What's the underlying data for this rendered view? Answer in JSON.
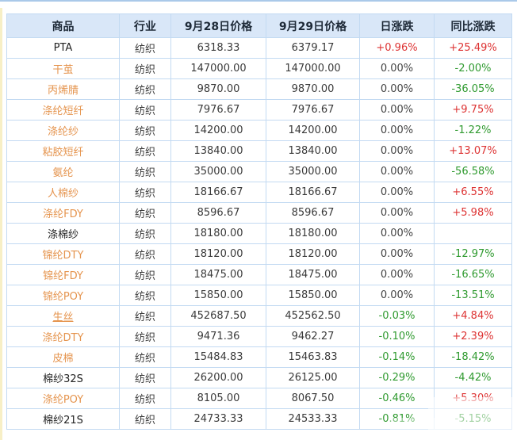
{
  "colors": {
    "up": "#dd3333",
    "down": "#2f9a2f",
    "flat": "#444444",
    "link": "#e5944e",
    "header_bg": "#d9e7f8",
    "border": "#c3daf2"
  },
  "table": {
    "headers": [
      "商品",
      "行业",
      "9月28日价格",
      "9月29日价格",
      "日涨跌",
      "同比涨跌"
    ],
    "rows": [
      {
        "name": "PTA",
        "link": false,
        "underline": false,
        "industry": "纺织",
        "price_0928": "6318.33",
        "price_0929": "6379.17",
        "daily_change": "+0.96%",
        "yoy_change": "+25.49%"
      },
      {
        "name": "干茧",
        "link": true,
        "underline": false,
        "industry": "纺织",
        "price_0928": "147000.00",
        "price_0929": "147000.00",
        "daily_change": "0.00%",
        "yoy_change": "-2.00%"
      },
      {
        "name": "丙烯腈",
        "link": true,
        "underline": false,
        "industry": "纺织",
        "price_0928": "9870.00",
        "price_0929": "9870.00",
        "daily_change": "0.00%",
        "yoy_change": "-36.05%"
      },
      {
        "name": "涤纶短纤",
        "link": true,
        "underline": false,
        "industry": "纺织",
        "price_0928": "7976.67",
        "price_0929": "7976.67",
        "daily_change": "0.00%",
        "yoy_change": "+9.75%"
      },
      {
        "name": "涤纶纱",
        "link": true,
        "underline": false,
        "industry": "纺织",
        "price_0928": "14200.00",
        "price_0929": "14200.00",
        "daily_change": "0.00%",
        "yoy_change": "-1.22%"
      },
      {
        "name": "粘胶短纤",
        "link": true,
        "underline": false,
        "industry": "纺织",
        "price_0928": "13840.00",
        "price_0929": "13840.00",
        "daily_change": "0.00%",
        "yoy_change": "+13.07%"
      },
      {
        "name": "氨纶",
        "link": true,
        "underline": false,
        "industry": "纺织",
        "price_0928": "35000.00",
        "price_0929": "35000.00",
        "daily_change": "0.00%",
        "yoy_change": "-56.58%"
      },
      {
        "name": "人棉纱",
        "link": true,
        "underline": false,
        "industry": "纺织",
        "price_0928": "18166.67",
        "price_0929": "18166.67",
        "daily_change": "0.00%",
        "yoy_change": "+6.55%"
      },
      {
        "name": "涤纶FDY",
        "link": true,
        "underline": false,
        "industry": "纺织",
        "price_0928": "8596.67",
        "price_0929": "8596.67",
        "daily_change": "0.00%",
        "yoy_change": "+5.98%"
      },
      {
        "name": "涤棉纱",
        "link": false,
        "underline": false,
        "industry": "纺织",
        "price_0928": "18180.00",
        "price_0929": "18180.00",
        "daily_change": "0.00%",
        "yoy_change": ""
      },
      {
        "name": "锦纶DTY",
        "link": true,
        "underline": false,
        "industry": "纺织",
        "price_0928": "18120.00",
        "price_0929": "18120.00",
        "daily_change": "0.00%",
        "yoy_change": "-12.97%"
      },
      {
        "name": "锦纶FDY",
        "link": true,
        "underline": false,
        "industry": "纺织",
        "price_0928": "18475.00",
        "price_0929": "18475.00",
        "daily_change": "0.00%",
        "yoy_change": "-16.65%"
      },
      {
        "name": "锦纶POY",
        "link": true,
        "underline": false,
        "industry": "纺织",
        "price_0928": "15850.00",
        "price_0929": "15850.00",
        "daily_change": "0.00%",
        "yoy_change": "-13.51%"
      },
      {
        "name": "生丝",
        "link": true,
        "underline": true,
        "industry": "纺织",
        "price_0928": "452687.50",
        "price_0929": "452562.50",
        "daily_change": "-0.03%",
        "yoy_change": "+4.84%"
      },
      {
        "name": "涤纶DTY",
        "link": true,
        "underline": false,
        "industry": "纺织",
        "price_0928": "9471.36",
        "price_0929": "9462.27",
        "daily_change": "-0.10%",
        "yoy_change": "+2.39%"
      },
      {
        "name": "皮棉",
        "link": true,
        "underline": false,
        "industry": "纺织",
        "price_0928": "15484.83",
        "price_0929": "15463.83",
        "daily_change": "-0.14%",
        "yoy_change": "-18.42%"
      },
      {
        "name": "棉纱32S",
        "link": false,
        "underline": false,
        "industry": "纺织",
        "price_0928": "26200.00",
        "price_0929": "26125.00",
        "daily_change": "-0.29%",
        "yoy_change": "-4.42%"
      },
      {
        "name": "涤纶POY",
        "link": true,
        "underline": false,
        "industry": "纺织",
        "price_0928": "8105.00",
        "price_0929": "8067.50",
        "daily_change": "-0.46%",
        "yoy_change": "+5.30%"
      },
      {
        "name": "棉纱21S",
        "link": false,
        "underline": false,
        "industry": "纺织",
        "price_0928": "24733.33",
        "price_0929": "24533.33",
        "daily_change": "-0.81%",
        "yoy_change": "-5.15%"
      }
    ]
  }
}
